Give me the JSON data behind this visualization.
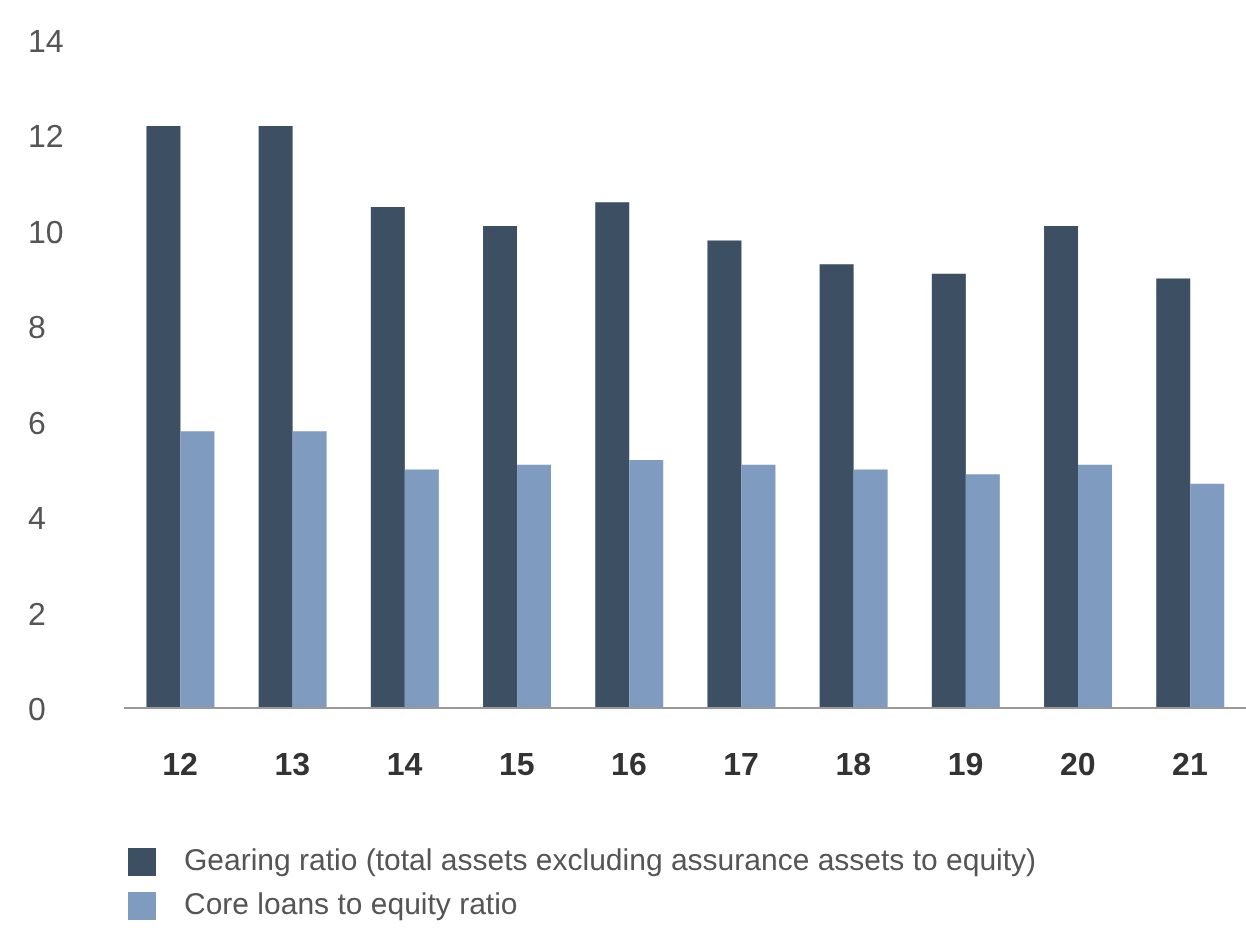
{
  "chart_data": {
    "type": "bar",
    "categories": [
      "12",
      "13",
      "14",
      "15",
      "16",
      "17",
      "18",
      "19",
      "20",
      "21"
    ],
    "series": [
      {
        "name": "Gearing ratio (total assets excluding assurance assets to equity)",
        "color": "#3d4f63",
        "values": [
          12.2,
          12.2,
          10.5,
          10.1,
          10.6,
          9.8,
          9.3,
          9.1,
          10.1,
          9.0
        ]
      },
      {
        "name": "Core loans to equity ratio",
        "color": "#7f9cc0",
        "values": [
          5.8,
          5.8,
          5.0,
          5.1,
          5.2,
          5.1,
          5.0,
          4.9,
          5.1,
          4.7
        ]
      }
    ],
    "ylim": [
      0,
      14
    ],
    "yticks": [
      0,
      2,
      4,
      6,
      8,
      10,
      12,
      14
    ],
    "grid": false,
    "legend": "bottom left"
  }
}
